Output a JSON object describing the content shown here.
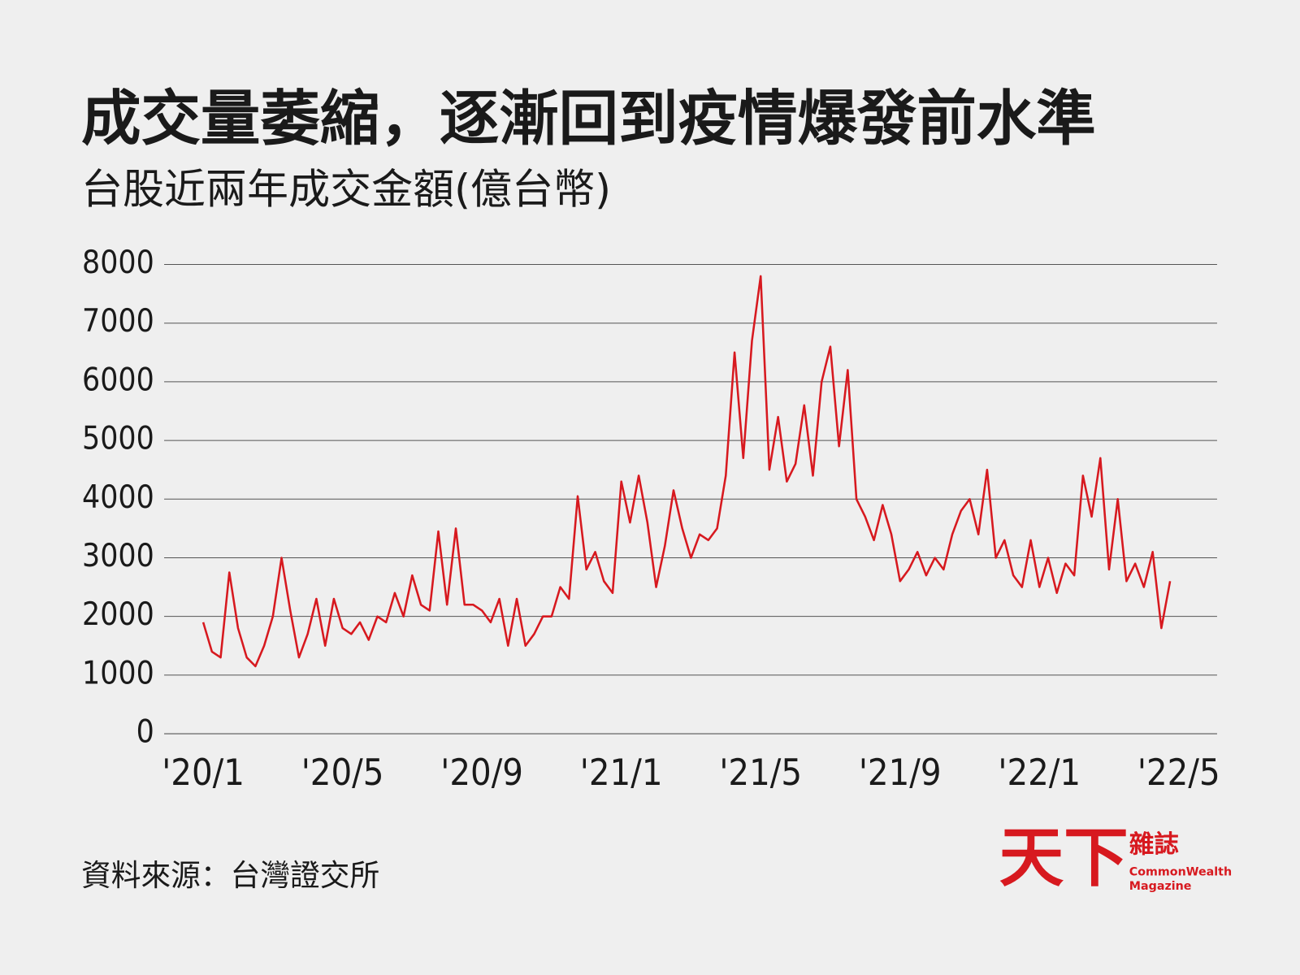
{
  "chart_data": {
    "type": "line",
    "title": "成交量萎縮，逐漸回到疫情爆發前水準",
    "subtitle": "台股近兩年成交金額(億台幣)",
    "source": "資料來源：台灣證交所",
    "x": [
      0,
      0.25,
      0.5,
      0.75,
      1,
      1.25,
      1.5,
      1.75,
      2,
      2.25,
      2.5,
      2.75,
      3,
      3.25,
      3.5,
      3.75,
      4,
      4.25,
      4.5,
      4.75,
      5,
      5.25,
      5.5,
      5.75,
      6,
      6.25,
      6.5,
      6.75,
      7,
      7.25,
      7.5,
      7.75,
      8,
      8.25,
      8.5,
      8.75,
      9,
      9.25,
      9.5,
      9.75,
      10,
      10.25,
      10.5,
      10.75,
      11,
      11.25,
      11.5,
      11.75,
      12,
      12.25,
      12.5,
      12.75,
      13,
      13.25,
      13.5,
      13.75,
      14,
      14.25,
      14.5,
      14.75,
      15,
      15.25,
      15.5,
      15.75,
      16,
      16.25,
      16.5,
      16.75,
      17,
      17.25,
      17.5,
      17.75,
      18,
      18.25,
      18.5,
      18.75,
      19,
      19.25,
      19.5,
      19.75,
      20,
      20.25,
      20.5,
      20.75,
      21,
      21.25,
      21.5,
      21.75,
      22,
      22.25,
      22.5,
      22.75,
      23,
      23.25,
      23.5,
      23.75,
      24,
      24.25,
      24.5,
      24.75,
      25,
      25.25,
      25.5,
      25.75,
      26,
      26.25,
      26.5,
      26.75,
      27,
      27.25,
      27.5,
      27.75
    ],
    "series": [
      {
        "color": "#d7191f",
        "values": [
          1900,
          1400,
          1300,
          2750,
          1800,
          1300,
          1150,
          1500,
          2000,
          3000,
          2100,
          1300,
          1700,
          2300,
          1500,
          2300,
          1800,
          1700,
          1900,
          1600,
          2000,
          1900,
          2400,
          2000,
          2700,
          2200,
          2100,
          3450,
          2200,
          3500,
          2200,
          2200,
          2100,
          1900,
          2300,
          1500,
          2300,
          1500,
          1700,
          2000,
          2000,
          2500,
          2300,
          4050,
          2800,
          3100,
          2600,
          2400,
          4300,
          3600,
          4400,
          3600,
          2500,
          3200,
          4150,
          3500,
          3000,
          3400,
          3300,
          3500,
          4400,
          6500,
          4700,
          6700,
          7800,
          4500,
          5400,
          4300,
          4600,
          5600,
          4400,
          6000,
          6600,
          4900,
          6200,
          4000,
          3700,
          3300,
          3900,
          3400,
          2600,
          2800,
          3100,
          2700,
          3000,
          2800,
          3400,
          3800,
          4000,
          3400,
          4500,
          3000,
          3300,
          2700,
          2500,
          3300,
          2500,
          3000,
          2400,
          2900,
          2700,
          4400,
          3700,
          4700,
          2800,
          4000,
          2600,
          2900,
          2500,
          3100,
          1800,
          2600
        ]
      }
    ],
    "xlim": [
      -1.12,
      29.1
    ],
    "xticks": [
      {
        "value": 0,
        "label": "'20/1"
      },
      {
        "value": 4,
        "label": "'20/5"
      },
      {
        "value": 8,
        "label": "'20/9"
      },
      {
        "value": 12,
        "label": "'21/1"
      },
      {
        "value": 16,
        "label": "'21/5"
      },
      {
        "value": 20,
        "label": "'21/9"
      },
      {
        "value": 24,
        "label": "'22/1"
      },
      {
        "value": 28,
        "label": "'22/5"
      }
    ],
    "ylim": [
      0,
      8000
    ],
    "yticks": [
      0,
      1000,
      2000,
      3000,
      4000,
      5000,
      6000,
      7000,
      8000
    ],
    "grid": true
  },
  "logo": {
    "main": "天下",
    "side": "雜誌",
    "en1": "CommonWealth",
    "en2": "Magazine"
  }
}
